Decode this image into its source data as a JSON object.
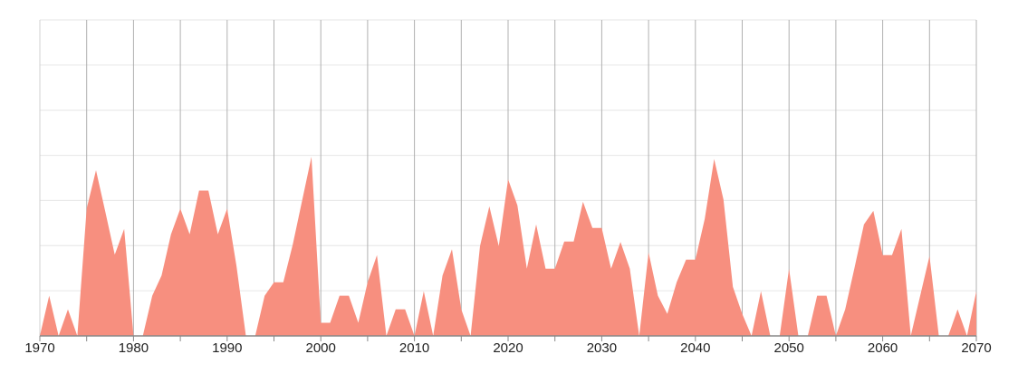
{
  "chart_data": {
    "type": "area",
    "title": "",
    "xlabel": "",
    "ylabel": "",
    "xlim": [
      1970,
      2070
    ],
    "ylim": [
      0,
      7
    ],
    "grid": true,
    "y_tick_labels_shown": false,
    "fill_color": "#f78f7f",
    "x_tick_labels": [
      "1970",
      "1980",
      "1990",
      "2000",
      "2010",
      "2020",
      "2030",
      "2040",
      "2050",
      "2060",
      "2070"
    ],
    "x": [
      1970,
      1971,
      1972,
      1973,
      1974,
      1975,
      1976,
      1977,
      1978,
      1979,
      1980,
      1981,
      1982,
      1983,
      1984,
      1985,
      1986,
      1987,
      1988,
      1989,
      1990,
      1991,
      1992,
      1993,
      1994,
      1995,
      1996,
      1997,
      1998,
      1999,
      2000,
      2001,
      2002,
      2003,
      2004,
      2005,
      2006,
      2007,
      2008,
      2009,
      2010,
      2011,
      2012,
      2013,
      2014,
      2015,
      2016,
      2017,
      2018,
      2019,
      2020,
      2021,
      2022,
      2023,
      2024,
      2025,
      2026,
      2027,
      2028,
      2029,
      2030,
      2031,
      2032,
      2033,
      2034,
      2035,
      2036,
      2037,
      2038,
      2039,
      2040,
      2041,
      2042,
      2043,
      2044,
      2045,
      2046,
      2047,
      2048,
      2049,
      2050,
      2051,
      2052,
      2053,
      2054,
      2055,
      2056,
      2057,
      2058,
      2059,
      2060,
      2061,
      2062,
      2063,
      2064,
      2065,
      2066,
      2067,
      2068,
      2069,
      2070
    ],
    "values": [
      0,
      0.89,
      0,
      0.59,
      0,
      2.82,
      3.67,
      2.74,
      1.8,
      2.37,
      0,
      0,
      0.89,
      1.34,
      2.25,
      2.82,
      2.25,
      3.22,
      3.22,
      2.25,
      2.82,
      1.55,
      0,
      0,
      0.89,
      1.19,
      1.19,
      2.02,
      2.99,
      3.97,
      0.29,
      0.29,
      0.89,
      0.89,
      0.29,
      1.19,
      1.79,
      0,
      0.59,
      0.59,
      0,
      0.99,
      0,
      1.34,
      1.92,
      0.59,
      0,
      1.99,
      2.87,
      1.99,
      3.47,
      2.89,
      1.49,
      2.47,
      1.49,
      1.49,
      2.09,
      2.09,
      2.97,
      2.39,
      2.39,
      1.49,
      2.08,
      1.49,
      0,
      1.85,
      0.89,
      0.49,
      1.19,
      1.69,
      1.69,
      2.59,
      3.92,
      3.02,
      1.09,
      0.49,
      0,
      0.99,
      0,
      0,
      1.49,
      0,
      0,
      0.89,
      0.89,
      0,
      0.59,
      1.52,
      2.47,
      2.77,
      1.79,
      1.79,
      2.37,
      0,
      0.89,
      1.77,
      0,
      0,
      0.59,
      0,
      0.99
    ]
  }
}
